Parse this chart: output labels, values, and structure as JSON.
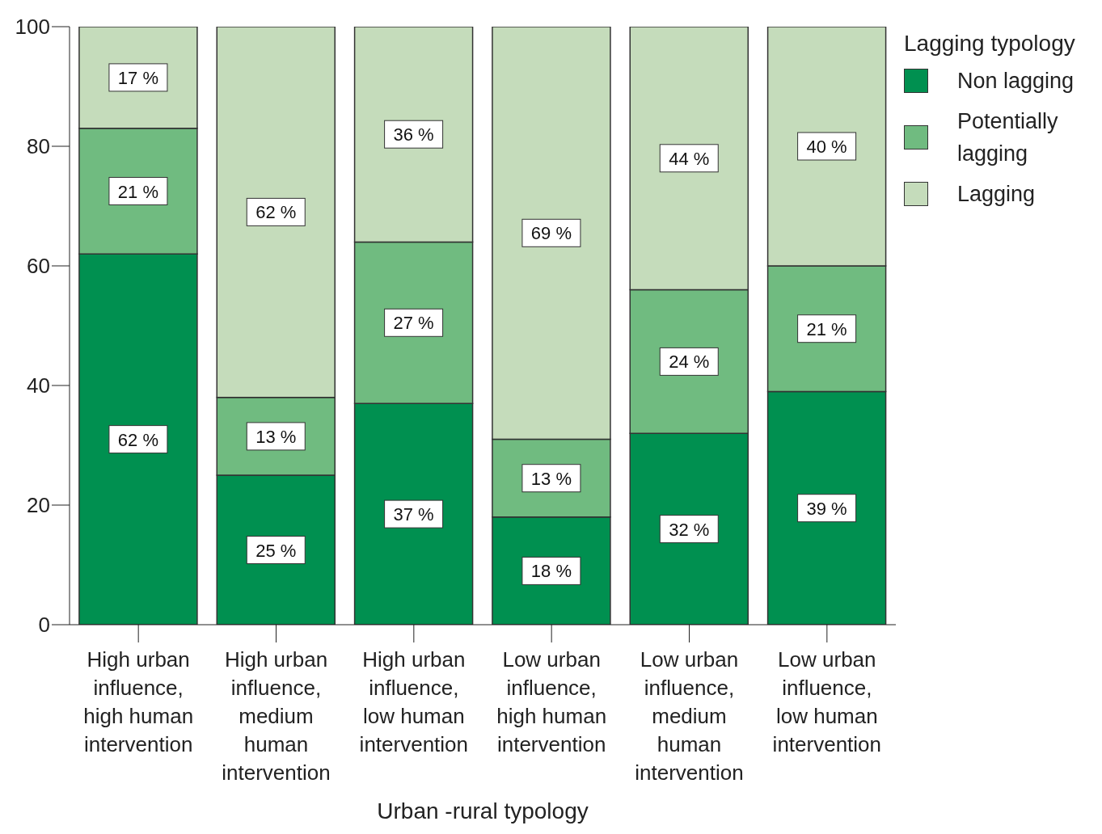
{
  "chart_data": {
    "type": "bar",
    "stacked": true,
    "xlabel": "Urban -rural typology",
    "legend_title": "Lagging typology",
    "legend": "top right",
    "grid": false,
    "categories": [
      "High urban influence, high human intervention",
      "High urban influence, medium human intervention",
      "High urban influence, low human intervention",
      "Low urban influence, high human intervention",
      "Low urban influence, medium human intervention",
      "Low urban influence, low human intervention"
    ],
    "ylim": [
      0,
      100
    ],
    "yticks": [
      0,
      20,
      40,
      60,
      80,
      100
    ],
    "series": [
      {
        "name": "Non lagging",
        "color": "#009050",
        "values": [
          62,
          25,
          37,
          18,
          32,
          39
        ],
        "value_labels": [
          "62 %",
          "25 %",
          "37 %",
          "18 %",
          "32 %",
          "39 %"
        ]
      },
      {
        "name": "Potentially lagging",
        "color": "#70bb80",
        "values": [
          21,
          13,
          27,
          13,
          24,
          21
        ],
        "value_labels": [
          "21 %",
          "13 %",
          "27 %",
          "13 %",
          "24 %",
          "21 %"
        ]
      },
      {
        "name": "Lagging",
        "color": "#c5dcbb",
        "values": [
          17,
          62,
          36,
          69,
          44,
          40
        ],
        "value_labels": [
          "17 %",
          "62 %",
          "36 %",
          "69 %",
          "44 %",
          "40 %"
        ]
      }
    ]
  }
}
